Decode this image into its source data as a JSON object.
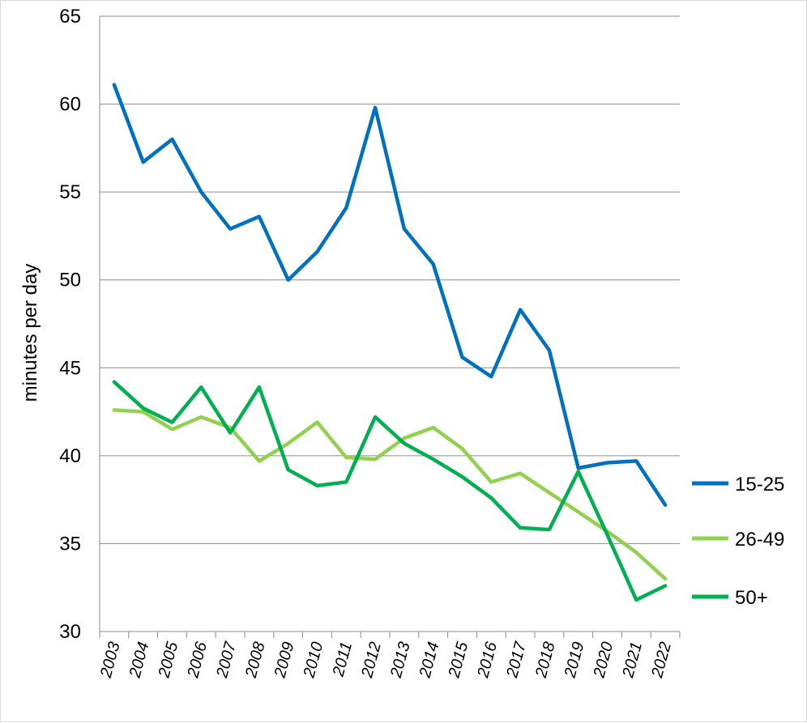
{
  "chart_data": {
    "type": "line",
    "ylabel": "minutes per day",
    "xlabel": "",
    "ylim": [
      30,
      65
    ],
    "yticks": [
      30,
      35,
      40,
      45,
      50,
      55,
      60,
      65
    ],
    "grid": true,
    "legend_position": "right",
    "x": [
      "2003",
      "2004",
      "2005",
      "2006",
      "2007",
      "2008",
      "2009",
      "2010",
      "2011",
      "2012",
      "2013",
      "2014",
      "2015",
      "2016",
      "2017",
      "2018",
      "2019",
      "2020",
      "2021",
      "2022"
    ],
    "series": [
      {
        "name": "15-25",
        "color": "#0070C0",
        "values": [
          61.1,
          56.7,
          58.0,
          55.0,
          52.9,
          53.6,
          50.0,
          51.6,
          54.1,
          59.8,
          52.9,
          50.9,
          45.6,
          44.5,
          48.3,
          46.0,
          39.3,
          39.6,
          39.7,
          37.2
        ]
      },
      {
        "name": "26-49",
        "color": "#92D050",
        "values": [
          42.6,
          42.5,
          41.5,
          42.2,
          41.6,
          39.7,
          40.7,
          41.9,
          39.9,
          39.8,
          41.0,
          41.6,
          40.4,
          38.5,
          39.0,
          37.9,
          36.8,
          35.7,
          34.5,
          33.0
        ]
      },
      {
        "name": "50+",
        "color": "#00B050",
        "values": [
          44.2,
          42.7,
          41.9,
          43.9,
          41.3,
          43.9,
          39.2,
          38.3,
          38.5,
          42.2,
          40.7,
          39.8,
          38.8,
          37.6,
          35.9,
          35.8,
          39.1,
          35.5,
          31.8,
          32.6
        ]
      }
    ]
  }
}
